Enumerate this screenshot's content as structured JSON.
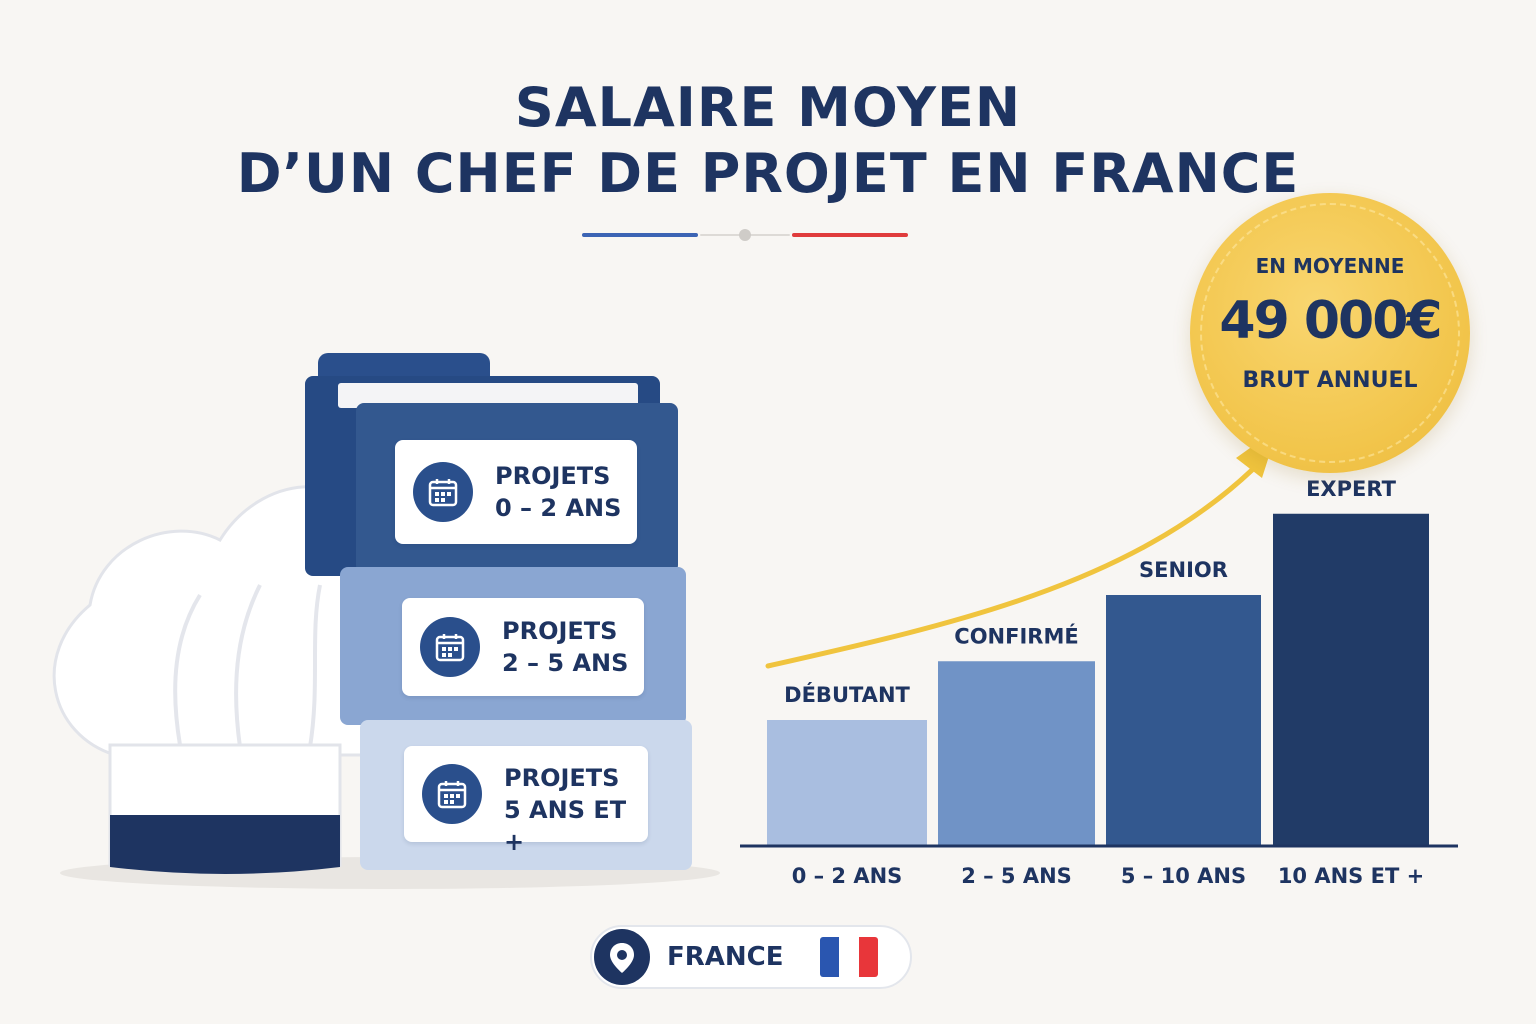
{
  "title": {
    "line1": "SALAIRE  MOYEN",
    "line2": "D’UN CHEF DE PROJET EN FRANCE"
  },
  "badge": {
    "top": "EN MOYENNE",
    "value": "49 000€",
    "bottom": "BRUT ANNUEL",
    "color": "#f2c54b"
  },
  "folders": [
    {
      "line1": "PROJETS",
      "line2": "0 – 2 ANS",
      "icon": "calendar-icon",
      "color": "#33588f"
    },
    {
      "line1": "PROJETS",
      "line2": "2 – 5 ANS",
      "icon": "calendar-icon",
      "color": "#8aa6d2"
    },
    {
      "line1": "PROJETS",
      "line2": "5 ANS ET +",
      "icon": "calendar-icon",
      "color": "#cbd8ec"
    }
  ],
  "illustration": {
    "icon": "chef-hat-icon"
  },
  "location": {
    "label": "FRANCE",
    "icon": "location-pin-icon",
    "flag_colors": [
      "#2a56b0",
      "#ffffff",
      "#e8363a"
    ]
  },
  "chart_data": {
    "type": "bar",
    "categories": [
      "0 – 2 ANS",
      "2 – 5 ANS",
      "5 – 10 ANS",
      "10 ANS ET +"
    ],
    "bar_labels": [
      "DÉBUTANT",
      "CONFIRMÉ",
      "SENIOR",
      "EXPERT"
    ],
    "values": [
      1.0,
      1.47,
      2.0,
      2.65
    ],
    "ylim": [
      0,
      3
    ],
    "colors": [
      "#a9bee0",
      "#7093c6",
      "#33588f",
      "#213b67"
    ],
    "trend_color": "#f0c43e",
    "axis_color": "#1e3461"
  }
}
